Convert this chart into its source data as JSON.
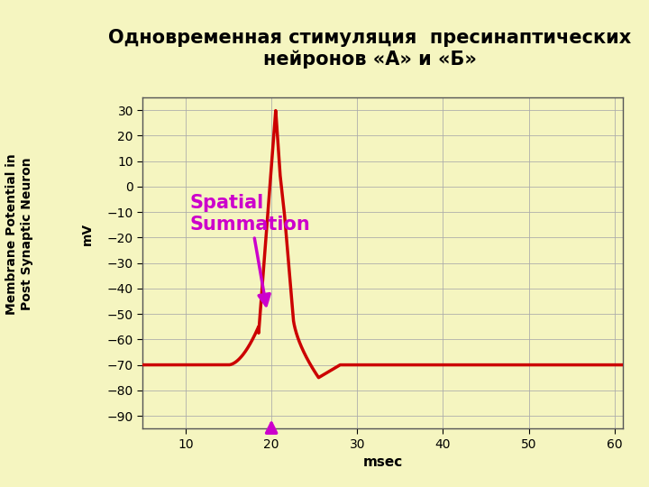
{
  "title_line1": "Одновременная стимуляция  пресинаптических",
  "title_line2": "нейронов «А» и «Б»",
  "ylabel_outer": "Membrane Potential in\nPost Synaptic Neuron",
  "ylabel_inner": "mV",
  "xlabel": "msec",
  "background_color": "#f5f5c0",
  "plot_bg_color": "#f5f5c0",
  "line_color": "#cc0000",
  "annotation_color": "#cc00cc",
  "xlim": [
    5,
    61
  ],
  "ylim": [
    -95,
    35
  ],
  "xticks": [
    10,
    20,
    30,
    40,
    50,
    60
  ],
  "yticks": [
    -90,
    -80,
    -70,
    -60,
    -50,
    -40,
    -30,
    -20,
    -10,
    0,
    10,
    20,
    30
  ],
  "resting": -70,
  "spatial_text": "Spatial\nSummation",
  "title_fontsize": 15,
  "axis_fontsize": 11,
  "annot_fontsize": 15
}
